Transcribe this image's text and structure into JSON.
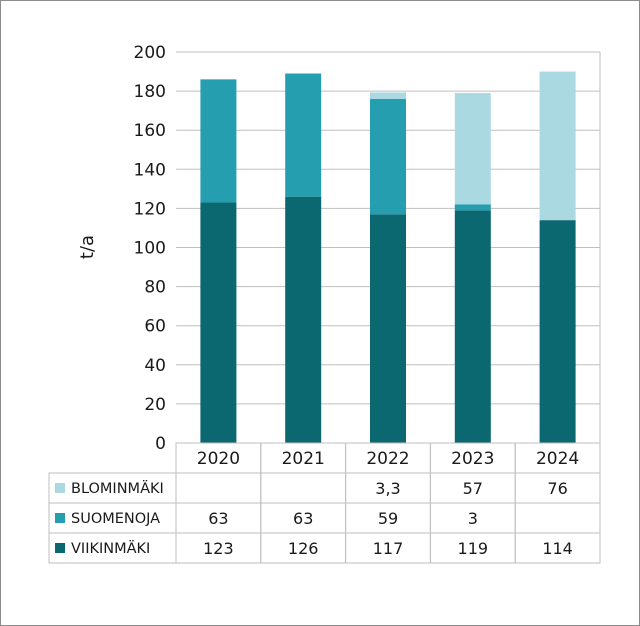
{
  "chart_data": {
    "type": "bar",
    "stacked": true,
    "categories": [
      "2020",
      "2021",
      "2022",
      "2023",
      "2024"
    ],
    "ylabel": "t/a",
    "ylim": [
      0,
      200
    ],
    "yticks": [
      "0",
      "20",
      "40",
      "60",
      "80",
      "100",
      "120",
      "140",
      "160",
      "180",
      "200"
    ],
    "grid": true,
    "series": [
      {
        "name": "VIIKINMÄKI",
        "values": [
          123,
          126,
          117,
          119,
          114
        ],
        "labels": [
          "123",
          "126",
          "117",
          "119",
          "114"
        ],
        "color": "#0b6770"
      },
      {
        "name": "SUOMENOJA",
        "values": [
          63,
          63,
          59,
          3,
          null
        ],
        "labels": [
          "63",
          "63",
          "59",
          "3",
          ""
        ],
        "color": "#259faf"
      },
      {
        "name": "BLOMINMÄKI",
        "values": [
          null,
          null,
          3.3,
          57,
          76
        ],
        "labels": [
          "",
          "",
          "3,3",
          "57",
          "76"
        ],
        "color": "#aad9e2"
      }
    ],
    "legend_placement": "data-table"
  }
}
